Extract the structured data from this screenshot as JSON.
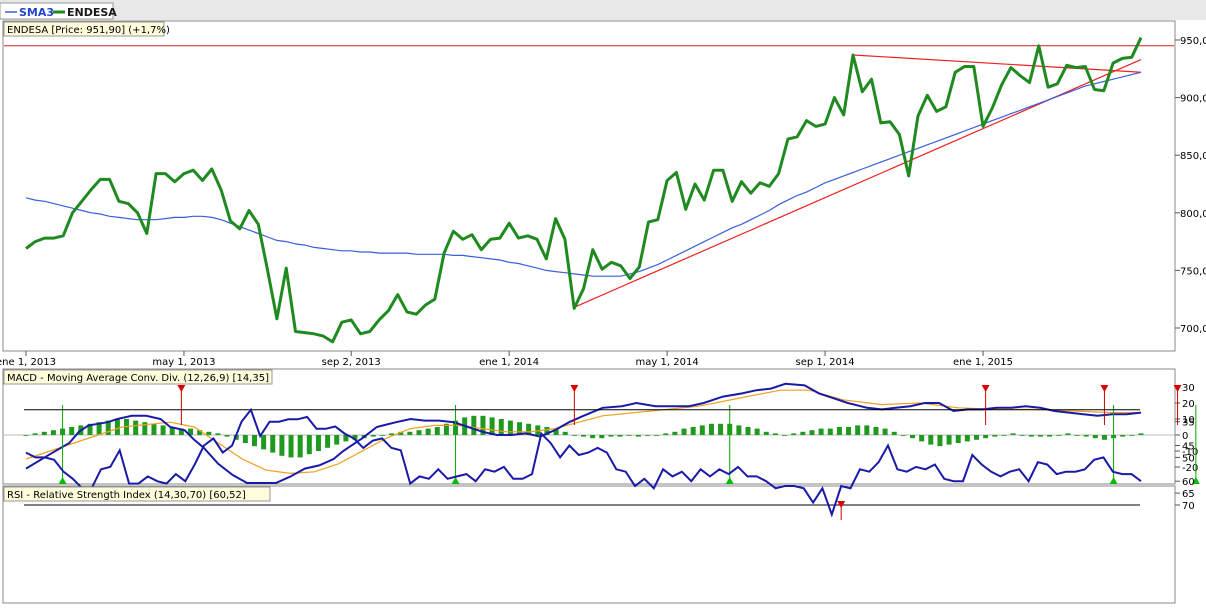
{
  "legend": {
    "items": [
      {
        "label": "SMA3",
        "color": "#3a5fd9"
      },
      {
        "label": "ENDESA",
        "color": "#1f8a1f"
      }
    ]
  },
  "chart_data": [
    {
      "type": "line",
      "title": "ENDESA [Price: 951,90] (+1,7%)",
      "xlabel": "",
      "ylabel": "",
      "ylim": [
        685,
        965
      ],
      "yticks": [
        700,
        750,
        800,
        850,
        900,
        950
      ],
      "ytick_labels": [
        "700,0",
        "750,0",
        "800,0",
        "850,0",
        "900,0",
        "950,0"
      ],
      "xtick_labels": [
        "ene 1, 2013",
        "may 1, 2013",
        "sep 2, 2013",
        "ene 1, 2014",
        "may 1, 2014",
        "sep 1, 2014",
        "ene 1, 2015"
      ],
      "grid": false,
      "series": [
        {
          "name": "ENDESA",
          "color": "#1f8a1f",
          "values": [
            769,
            775,
            778,
            778,
            780,
            800,
            810,
            820,
            829,
            829,
            810,
            808,
            800,
            782,
            834,
            834,
            827,
            834,
            837,
            828,
            838,
            820,
            793,
            786,
            802,
            790,
            750,
            708,
            752,
            697,
            696,
            695,
            693,
            688,
            705,
            707,
            695,
            697,
            707,
            715,
            729,
            714,
            712,
            720,
            725,
            765,
            784,
            777,
            781,
            768,
            777,
            778,
            791,
            778,
            780,
            777,
            760,
            795,
            777,
            717,
            734,
            768,
            751,
            757,
            754,
            743,
            753,
            792,
            794,
            828,
            835,
            803,
            825,
            811,
            837,
            837,
            810,
            827,
            817,
            826,
            823,
            834,
            864,
            866,
            880,
            875,
            877,
            900,
            885,
            937,
            905,
            916,
            878,
            879,
            868,
            832,
            884,
            902,
            888,
            892,
            922,
            927,
            927,
            875,
            891,
            911,
            926,
            919,
            913,
            945,
            909,
            912,
            928,
            926,
            927,
            907,
            906,
            930,
            934,
            935,
            952
          ]
        },
        {
          "name": "SMA3",
          "color": "#3a5fd9",
          "values": [
            813,
            811,
            810,
            808,
            806,
            804,
            802,
            800,
            799,
            797,
            796,
            795,
            794,
            794,
            794,
            795,
            796,
            796,
            797,
            797,
            796,
            794,
            791,
            788,
            785,
            782,
            779,
            776,
            775,
            773,
            772,
            770,
            769,
            768,
            767,
            767,
            766,
            766,
            765,
            765,
            765,
            765,
            764,
            764,
            764,
            764,
            763,
            763,
            762,
            761,
            760,
            759,
            757,
            756,
            754,
            752,
            750,
            749,
            748,
            747,
            746,
            745,
            745,
            745,
            745,
            747,
            749,
            752,
            755,
            759,
            763,
            767,
            771,
            775,
            779,
            783,
            787,
            790,
            794,
            798,
            802,
            807,
            811,
            815,
            818,
            822,
            826,
            829,
            832,
            835,
            838,
            841,
            844,
            847,
            850,
            853,
            856,
            859,
            862,
            865,
            868,
            871,
            874,
            877,
            880,
            883,
            886,
            889,
            892,
            895,
            898,
            901,
            904,
            907,
            910,
            912,
            914,
            916,
            918,
            920,
            922
          ]
        }
      ],
      "annotations": [
        {
          "kind": "horizontal-line",
          "y": 945,
          "color": "#cc2222"
        },
        {
          "kind": "trendline",
          "from": [
            59,
            718
          ],
          "to": [
            120,
            933
          ],
          "color": "#ee2222"
        },
        {
          "kind": "trendline",
          "from": [
            89,
            937
          ],
          "to": [
            120,
            922
          ],
          "color": "#ee2222"
        }
      ]
    },
    {
      "type": "line",
      "title": "MACD - Moving Average Conv. Div. (12,26,9) [14,35]",
      "ylim": [
        -30,
        35
      ],
      "yticks": [
        -20,
        -10,
        0,
        10,
        20,
        30
      ],
      "ytick_labels": [
        "-20",
        "-10",
        "0",
        "10",
        "20",
        "30"
      ],
      "series": [
        {
          "name": "MACD",
          "color": "#1a1aa8",
          "kind": "line",
          "points": [
            [
              0,
              -21
            ],
            [
              5,
              -12
            ],
            [
              9,
              -5
            ],
            [
              11,
              2
            ],
            [
              13,
              6
            ],
            [
              15,
              7
            ],
            [
              17,
              8
            ],
            [
              19,
              10
            ],
            [
              22,
              12
            ],
            [
              25,
              12
            ],
            [
              28,
              10
            ],
            [
              30,
              5
            ],
            [
              33,
              3
            ],
            [
              35,
              -3
            ],
            [
              37,
              -8
            ],
            [
              40,
              -18
            ],
            [
              43,
              -25
            ],
            [
              46,
              -30
            ],
            [
              49,
              -30
            ],
            [
              52,
              -30
            ],
            [
              55,
              -26
            ],
            [
              58,
              -21
            ],
            [
              61,
              -19
            ],
            [
              64,
              -15
            ],
            [
              66,
              -10
            ],
            [
              70,
              -2
            ],
            [
              73,
              5
            ],
            [
              77,
              8
            ],
            [
              80,
              10
            ],
            [
              83,
              9
            ],
            [
              86,
              9
            ],
            [
              89,
              8
            ],
            [
              92,
              5
            ],
            [
              95,
              2
            ],
            [
              98,
              0
            ],
            [
              101,
              0
            ],
            [
              104,
              1
            ],
            [
              107,
              -1
            ],
            [
              110,
              3
            ],
            [
              113,
              8
            ],
            [
              116,
              12
            ],
            [
              120,
              17
            ],
            [
              124,
              18
            ],
            [
              127,
              20
            ],
            [
              131,
              18
            ],
            [
              134,
              18
            ],
            [
              138,
              18
            ],
            [
              141,
              20
            ],
            [
              145,
              24
            ],
            [
              149,
              26
            ],
            [
              152,
              28
            ],
            [
              155,
              29
            ],
            [
              158,
              32
            ],
            [
              162,
              31
            ],
            [
              165,
              26
            ],
            [
              168,
              23
            ],
            [
              171,
              20
            ],
            [
              175,
              17
            ],
            [
              178,
              16
            ],
            [
              181,
              17
            ],
            [
              184,
              18
            ],
            [
              187,
              20
            ],
            [
              190,
              20
            ],
            [
              193,
              15
            ],
            [
              196,
              16
            ],
            [
              199,
              16
            ],
            [
              202,
              17
            ],
            [
              205,
              17
            ],
            [
              208,
              18
            ],
            [
              211,
              17
            ],
            [
              214,
              15
            ],
            [
              217,
              14
            ],
            [
              220,
              13
            ],
            [
              223,
              12
            ],
            [
              226,
              13
            ],
            [
              229,
              13
            ],
            [
              232,
              14
            ]
          ]
        },
        {
          "name": "Signal",
          "color": "#f0a020",
          "kind": "line",
          "points": [
            [
              0,
              -15
            ],
            [
              10,
              -5
            ],
            [
              20,
              5
            ],
            [
              30,
              8
            ],
            [
              35,
              5
            ],
            [
              40,
              -5
            ],
            [
              45,
              -15
            ],
            [
              50,
              -22
            ],
            [
              55,
              -24
            ],
            [
              60,
              -23
            ],
            [
              65,
              -18
            ],
            [
              70,
              -10
            ],
            [
              75,
              -2
            ],
            [
              80,
              4
            ],
            [
              85,
              6
            ],
            [
              90,
              6
            ],
            [
              95,
              4
            ],
            [
              100,
              2
            ],
            [
              105,
              2
            ],
            [
              110,
              4
            ],
            [
              115,
              8
            ],
            [
              120,
              12
            ],
            [
              130,
              15
            ],
            [
              140,
              18
            ],
            [
              150,
              24
            ],
            [
              157,
              28
            ],
            [
              163,
              28
            ],
            [
              170,
              22
            ],
            [
              178,
              19
            ],
            [
              186,
              20
            ],
            [
              194,
              17
            ],
            [
              202,
              16
            ],
            [
              210,
              16
            ],
            [
              218,
              15
            ],
            [
              226,
              14
            ],
            [
              232,
              14
            ]
          ]
        },
        {
          "name": "Histogram",
          "color": "#1f9a1f",
          "kind": "bar",
          "values": [
            0,
            1,
            2,
            3,
            4,
            5,
            6,
            7,
            8,
            9,
            10,
            10,
            9,
            8,
            7,
            6,
            5,
            4,
            4,
            3,
            2,
            1,
            -1,
            -3,
            -5,
            -7,
            -9,
            -11,
            -13,
            -14,
            -14,
            -12,
            -10,
            -8,
            -6,
            -4,
            -3,
            -2,
            -1,
            0,
            1,
            2,
            2,
            3,
            4,
            5,
            7,
            9,
            11,
            12,
            12,
            11,
            10,
            9,
            8,
            7,
            6,
            5,
            4,
            2,
            0,
            -1,
            -2,
            -2,
            -1,
            -1,
            0,
            -1,
            0,
            0,
            1,
            2,
            4,
            5,
            6,
            7,
            7,
            7,
            6,
            5,
            4,
            2,
            1,
            0,
            1,
            2,
            3,
            4,
            4,
            5,
            5,
            6,
            6,
            5,
            4,
            2,
            0,
            -2,
            -4,
            -6,
            -7,
            -6,
            -5,
            -4,
            -3,
            -2,
            -1,
            0,
            1,
            0,
            -1,
            -1,
            -1,
            0,
            1,
            0,
            -1,
            -2,
            -3,
            -2,
            -1,
            0,
            1
          ]
        }
      ],
      "signals": {
        "sell": [
          17,
          60,
          105,
          118,
          126
        ],
        "buy": [
          4,
          47,
          77,
          119,
          128,
          137
        ]
      }
    },
    {
      "type": "line",
      "title": "RSI - Relative Strength Index (14,30,70) [60,52]",
      "ylim": [
        29,
        75
      ],
      "yticks": [
        35,
        45,
        50,
        60,
        65,
        70
      ],
      "ytick_labels": [
        "35",
        "45",
        "50",
        "60",
        "65",
        "70"
      ],
      "reference_lines": [
        30,
        70
      ],
      "series": [
        {
          "name": "RSI",
          "color": "#1a1aa8",
          "values": [
            48,
            50,
            50,
            51,
            56,
            59,
            63,
            63,
            55,
            54,
            47,
            61,
            61,
            58,
            60,
            61,
            57,
            60,
            53,
            45,
            42,
            48,
            45,
            35,
            30,
            41,
            35,
            35,
            34,
            34,
            33,
            38,
            38,
            37,
            40,
            42,
            46,
            43,
            42,
            46,
            47,
            61,
            58,
            59,
            55,
            59,
            58,
            57,
            60,
            55,
            56,
            54,
            59,
            59,
            57,
            40,
            44,
            50,
            45,
            49,
            48,
            46,
            48,
            55,
            56,
            62,
            59,
            63,
            55,
            58,
            56,
            60,
            55,
            58,
            55,
            57,
            54,
            58,
            58,
            60,
            63,
            62,
            62,
            63,
            69,
            63,
            74,
            62,
            63,
            55,
            56,
            52,
            45,
            55,
            56,
            54,
            55,
            53,
            59,
            60,
            60,
            49,
            53,
            56,
            58,
            56,
            55,
            60,
            52,
            53,
            57,
            56,
            56,
            55,
            51,
            50,
            56,
            57,
            57,
            60
          ]
        }
      ],
      "signals": {
        "sell": [
          87
        ]
      }
    }
  ]
}
